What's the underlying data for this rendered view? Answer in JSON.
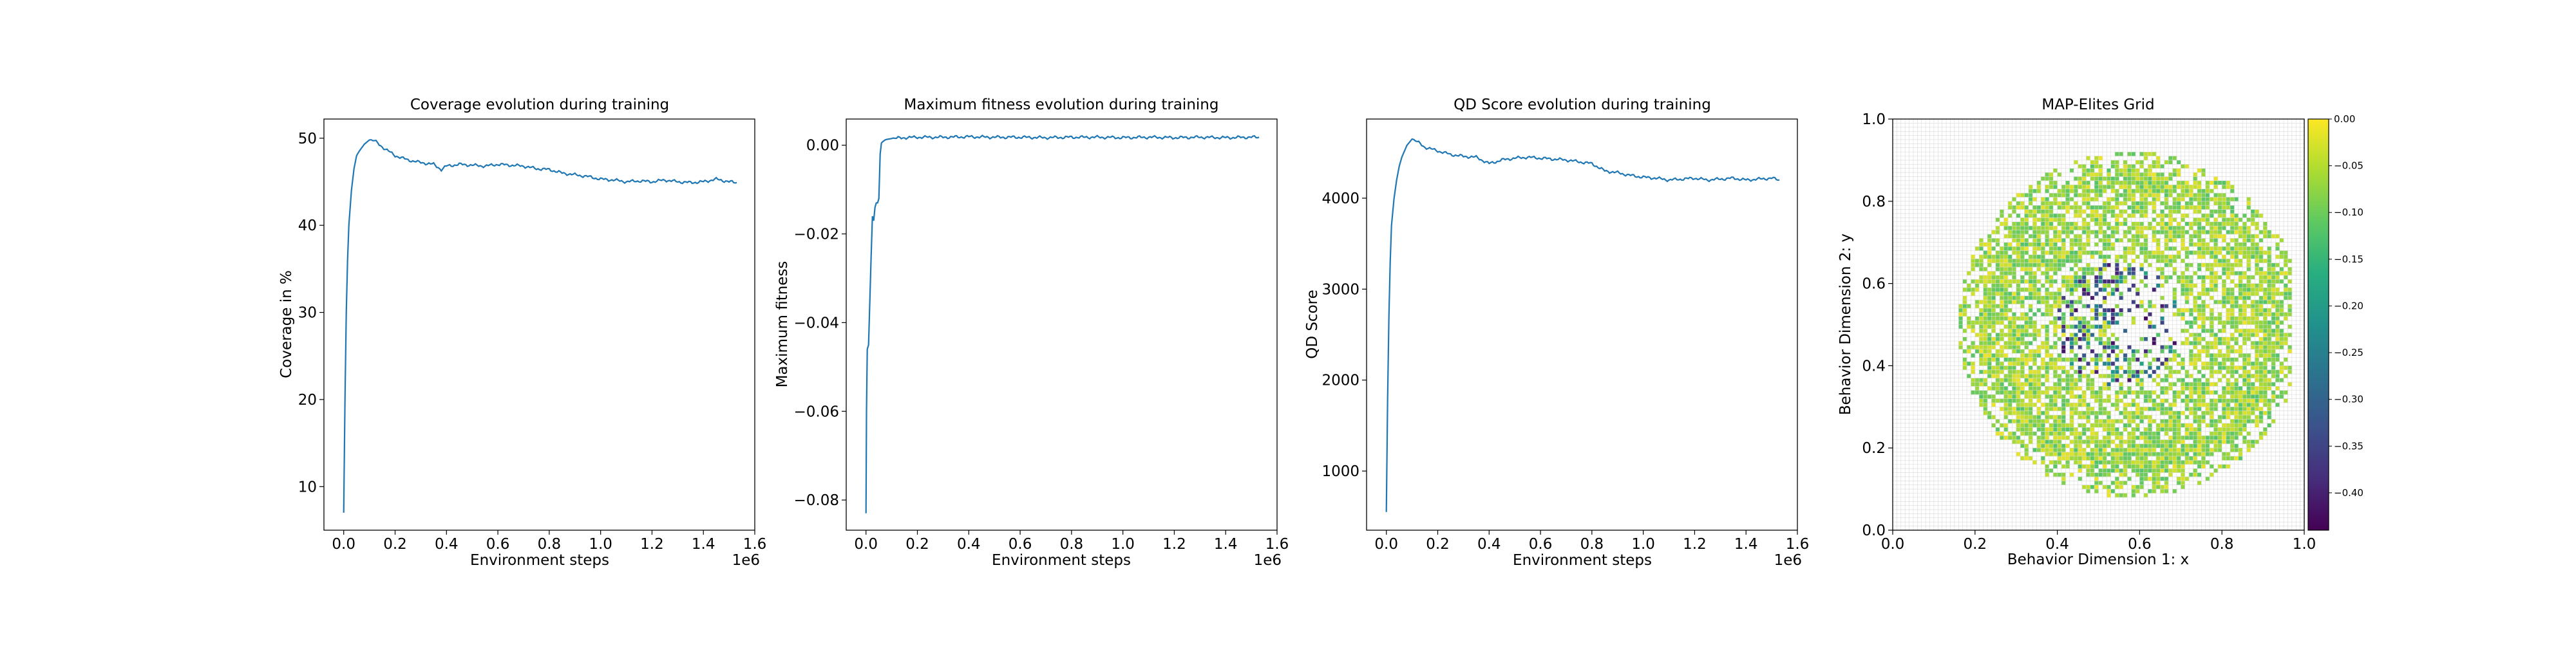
{
  "chart_data": [
    {
      "type": "line",
      "title": "Coverage evolution during training",
      "xlabel": "Environment steps",
      "ylabel": "Coverage in %",
      "x_offset_label": "1e6",
      "xlim": [
        -0.077,
        1.6
      ],
      "ylim": [
        5.0,
        52.2
      ],
      "xticks": [
        0.0,
        0.2,
        0.4,
        0.6,
        0.8,
        1.0,
        1.2,
        1.4,
        1.6
      ],
      "xtick_labels": [
        "0.0",
        "0.2",
        "0.4",
        "0.6",
        "0.8",
        "1.0",
        "1.2",
        "1.4",
        "1.6"
      ],
      "yticks": [
        10,
        20,
        30,
        40,
        50
      ],
      "ytick_labels": [
        "10",
        "20",
        "30",
        "40",
        "50"
      ],
      "grid": false,
      "color": "#1f77b4",
      "series": [
        {
          "x": [
            0.0,
            0.005,
            0.01,
            0.015,
            0.02,
            0.03,
            0.04,
            0.05,
            0.06,
            0.08,
            0.1,
            0.12,
            0.15,
            0.2,
            0.25,
            0.3,
            0.35,
            0.38,
            0.4,
            0.45,
            0.5,
            0.55,
            0.6,
            0.65,
            0.7,
            0.75,
            0.8,
            0.85,
            0.9,
            0.95,
            1.0,
            1.05,
            1.1,
            1.15,
            1.2,
            1.25,
            1.3,
            1.35,
            1.4,
            1.45,
            1.5,
            1.53
          ],
          "y": [
            7.0,
            20.0,
            30.0,
            36.0,
            40.0,
            44.0,
            46.5,
            48.0,
            48.5,
            49.3,
            49.8,
            49.7,
            49.0,
            48.0,
            47.5,
            47.2,
            47.0,
            46.4,
            46.8,
            47.0,
            46.9,
            46.8,
            47.0,
            46.9,
            46.8,
            46.5,
            46.4,
            46.0,
            45.8,
            45.6,
            45.3,
            45.2,
            45.0,
            45.1,
            45.0,
            45.2,
            45.0,
            44.9,
            45.0,
            45.3,
            45.0,
            44.9
          ]
        }
      ]
    },
    {
      "type": "line",
      "title": "Maximum fitness evolution during training",
      "xlabel": "Environment steps",
      "ylabel": "Maximum fitness",
      "x_offset_label": "1e6",
      "xlim": [
        -0.077,
        1.6
      ],
      "ylim": [
        -0.0868,
        0.0059
      ],
      "xticks": [
        0.0,
        0.2,
        0.4,
        0.6,
        0.8,
        1.0,
        1.2,
        1.4,
        1.6
      ],
      "xtick_labels": [
        "0.0",
        "0.2",
        "0.4",
        "0.6",
        "0.8",
        "1.0",
        "1.2",
        "1.4",
        "1.6"
      ],
      "yticks": [
        -0.08,
        -0.06,
        -0.04,
        -0.02,
        0.0
      ],
      "ytick_labels": [
        "−0.08",
        "−0.06",
        "−0.04",
        "−0.02",
        "0.00"
      ],
      "grid": false,
      "color": "#1f77b4",
      "series": [
        {
          "x": [
            0.0,
            0.002,
            0.005,
            0.01,
            0.015,
            0.02,
            0.025,
            0.03,
            0.035,
            0.04,
            0.045,
            0.05,
            0.055,
            0.06,
            0.065,
            0.07,
            0.075,
            0.08,
            0.09,
            0.1,
            0.15,
            0.2,
            0.3,
            0.4,
            0.5,
            0.6,
            0.7,
            0.8,
            0.9,
            1.0,
            1.1,
            1.2,
            1.3,
            1.4,
            1.5,
            1.53
          ],
          "y": [
            -0.083,
            -0.06,
            -0.046,
            -0.045,
            -0.035,
            -0.025,
            -0.016,
            -0.017,
            -0.014,
            -0.013,
            -0.013,
            -0.012,
            -0.002,
            0.0005,
            0.0008,
            0.001,
            0.0012,
            0.0013,
            0.0014,
            0.0015,
            0.0017,
            0.0018,
            0.0018,
            0.0019,
            0.0018,
            0.0018,
            0.0017,
            0.0018,
            0.0018,
            0.0017,
            0.0018,
            0.0017,
            0.0018,
            0.0017,
            0.0018,
            0.0018
          ]
        }
      ]
    },
    {
      "type": "line",
      "title": "QD Score evolution during training",
      "xlabel": "Environment steps",
      "ylabel": "QD Score",
      "x_offset_label": "1e6",
      "xlim": [
        -0.077,
        1.6
      ],
      "ylim": [
        350,
        4870
      ],
      "xticks": [
        0.0,
        0.2,
        0.4,
        0.6,
        0.8,
        1.0,
        1.2,
        1.4,
        1.6
      ],
      "xtick_labels": [
        "0.0",
        "0.2",
        "0.4",
        "0.6",
        "0.8",
        "1.0",
        "1.2",
        "1.4",
        "1.6"
      ],
      "yticks": [
        1000,
        2000,
        3000,
        4000
      ],
      "ytick_labels": [
        "1000",
        "2000",
        "3000",
        "4000"
      ],
      "grid": false,
      "color": "#1f77b4",
      "series": [
        {
          "x": [
            0.0,
            0.005,
            0.01,
            0.015,
            0.02,
            0.03,
            0.04,
            0.05,
            0.06,
            0.08,
            0.1,
            0.12,
            0.15,
            0.2,
            0.25,
            0.3,
            0.35,
            0.4,
            0.45,
            0.5,
            0.55,
            0.6,
            0.65,
            0.7,
            0.75,
            0.8,
            0.85,
            0.9,
            0.95,
            1.0,
            1.05,
            1.1,
            1.15,
            1.2,
            1.25,
            1.3,
            1.35,
            1.4,
            1.45,
            1.5,
            1.53
          ],
          "y": [
            550,
            1800,
            2700,
            3300,
            3700,
            4000,
            4200,
            4350,
            4450,
            4580,
            4650,
            4620,
            4560,
            4520,
            4480,
            4460,
            4450,
            4380,
            4420,
            4440,
            4450,
            4440,
            4430,
            4420,
            4400,
            4380,
            4300,
            4280,
            4250,
            4230,
            4220,
            4200,
            4210,
            4220,
            4200,
            4210,
            4220,
            4200,
            4210,
            4220,
            4200
          ]
        }
      ]
    },
    {
      "type": "heatmap",
      "title": "MAP-Elites Grid",
      "xlabel": "Behavior Dimension 1: x",
      "ylabel": "Behavior Dimension 2: y",
      "xlim": [
        0.0,
        1.0
      ],
      "ylim": [
        0.0,
        1.0
      ],
      "xticks": [
        0.0,
        0.2,
        0.4,
        0.6,
        0.8,
        1.0
      ],
      "xtick_labels": [
        "0.0",
        "0.2",
        "0.4",
        "0.6",
        "0.8",
        "1.0"
      ],
      "yticks": [
        0.0,
        0.2,
        0.4,
        0.6,
        0.8,
        1.0
      ],
      "ytick_labels": [
        "0.0",
        "0.2",
        "0.4",
        "0.6",
        "0.8",
        "1.0"
      ],
      "grid": true,
      "grid_cells": 100,
      "colormap": "viridis",
      "color_range": [
        -0.44,
        0.0
      ],
      "colorbar_ticks": [
        0.0,
        -0.05,
        -0.1,
        -0.15,
        -0.2,
        -0.25,
        -0.3,
        -0.35,
        -0.4
      ],
      "colorbar_tick_labels": [
        "0.00",
        "−0.05",
        "−0.10",
        "−0.15",
        "−0.20",
        "−0.25",
        "−0.30",
        "−0.35",
        "−0.40"
      ],
      "filled_region": {
        "center": [
          0.58,
          0.5
        ],
        "outer_radius": 0.42,
        "inner_hole_center": [
          0.62,
          0.52
        ],
        "inner_hole_radius": 0.1,
        "low_fitness_center": [
          0.55,
          0.5
        ],
        "low_fitness_radius": 0.15
      }
    }
  ]
}
